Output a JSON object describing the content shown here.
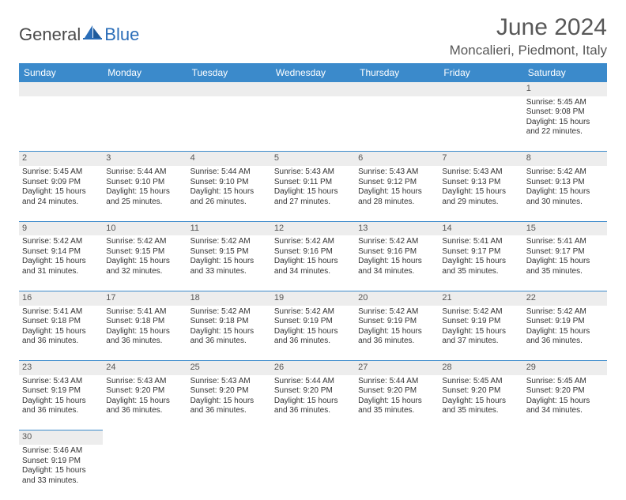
{
  "brand": {
    "part1": "General",
    "part2": "Blue"
  },
  "title": "June 2024",
  "location": "Moncalieri, Piedmont, Italy",
  "colors": {
    "header_bg": "#3b8acb",
    "header_text": "#ffffff",
    "daynum_bg": "#ededed",
    "row_border": "#3b8acb",
    "text": "#333333",
    "logo_gray": "#4a4a4a",
    "logo_blue": "#2a6db8"
  },
  "day_labels": [
    "Sunday",
    "Monday",
    "Tuesday",
    "Wednesday",
    "Thursday",
    "Friday",
    "Saturday"
  ],
  "weeks": [
    [
      null,
      null,
      null,
      null,
      null,
      null,
      {
        "n": "1",
        "sr": "Sunrise: 5:45 AM",
        "ss": "Sunset: 9:08 PM",
        "dl1": "Daylight: 15 hours",
        "dl2": "and 22 minutes."
      }
    ],
    [
      {
        "n": "2",
        "sr": "Sunrise: 5:45 AM",
        "ss": "Sunset: 9:09 PM",
        "dl1": "Daylight: 15 hours",
        "dl2": "and 24 minutes."
      },
      {
        "n": "3",
        "sr": "Sunrise: 5:44 AM",
        "ss": "Sunset: 9:10 PM",
        "dl1": "Daylight: 15 hours",
        "dl2": "and 25 minutes."
      },
      {
        "n": "4",
        "sr": "Sunrise: 5:44 AM",
        "ss": "Sunset: 9:10 PM",
        "dl1": "Daylight: 15 hours",
        "dl2": "and 26 minutes."
      },
      {
        "n": "5",
        "sr": "Sunrise: 5:43 AM",
        "ss": "Sunset: 9:11 PM",
        "dl1": "Daylight: 15 hours",
        "dl2": "and 27 minutes."
      },
      {
        "n": "6",
        "sr": "Sunrise: 5:43 AM",
        "ss": "Sunset: 9:12 PM",
        "dl1": "Daylight: 15 hours",
        "dl2": "and 28 minutes."
      },
      {
        "n": "7",
        "sr": "Sunrise: 5:43 AM",
        "ss": "Sunset: 9:13 PM",
        "dl1": "Daylight: 15 hours",
        "dl2": "and 29 minutes."
      },
      {
        "n": "8",
        "sr": "Sunrise: 5:42 AM",
        "ss": "Sunset: 9:13 PM",
        "dl1": "Daylight: 15 hours",
        "dl2": "and 30 minutes."
      }
    ],
    [
      {
        "n": "9",
        "sr": "Sunrise: 5:42 AM",
        "ss": "Sunset: 9:14 PM",
        "dl1": "Daylight: 15 hours",
        "dl2": "and 31 minutes."
      },
      {
        "n": "10",
        "sr": "Sunrise: 5:42 AM",
        "ss": "Sunset: 9:15 PM",
        "dl1": "Daylight: 15 hours",
        "dl2": "and 32 minutes."
      },
      {
        "n": "11",
        "sr": "Sunrise: 5:42 AM",
        "ss": "Sunset: 9:15 PM",
        "dl1": "Daylight: 15 hours",
        "dl2": "and 33 minutes."
      },
      {
        "n": "12",
        "sr": "Sunrise: 5:42 AM",
        "ss": "Sunset: 9:16 PM",
        "dl1": "Daylight: 15 hours",
        "dl2": "and 34 minutes."
      },
      {
        "n": "13",
        "sr": "Sunrise: 5:42 AM",
        "ss": "Sunset: 9:16 PM",
        "dl1": "Daylight: 15 hours",
        "dl2": "and 34 minutes."
      },
      {
        "n": "14",
        "sr": "Sunrise: 5:41 AM",
        "ss": "Sunset: 9:17 PM",
        "dl1": "Daylight: 15 hours",
        "dl2": "and 35 minutes."
      },
      {
        "n": "15",
        "sr": "Sunrise: 5:41 AM",
        "ss": "Sunset: 9:17 PM",
        "dl1": "Daylight: 15 hours",
        "dl2": "and 35 minutes."
      }
    ],
    [
      {
        "n": "16",
        "sr": "Sunrise: 5:41 AM",
        "ss": "Sunset: 9:18 PM",
        "dl1": "Daylight: 15 hours",
        "dl2": "and 36 minutes."
      },
      {
        "n": "17",
        "sr": "Sunrise: 5:41 AM",
        "ss": "Sunset: 9:18 PM",
        "dl1": "Daylight: 15 hours",
        "dl2": "and 36 minutes."
      },
      {
        "n": "18",
        "sr": "Sunrise: 5:42 AM",
        "ss": "Sunset: 9:18 PM",
        "dl1": "Daylight: 15 hours",
        "dl2": "and 36 minutes."
      },
      {
        "n": "19",
        "sr": "Sunrise: 5:42 AM",
        "ss": "Sunset: 9:19 PM",
        "dl1": "Daylight: 15 hours",
        "dl2": "and 36 minutes."
      },
      {
        "n": "20",
        "sr": "Sunrise: 5:42 AM",
        "ss": "Sunset: 9:19 PM",
        "dl1": "Daylight: 15 hours",
        "dl2": "and 36 minutes."
      },
      {
        "n": "21",
        "sr": "Sunrise: 5:42 AM",
        "ss": "Sunset: 9:19 PM",
        "dl1": "Daylight: 15 hours",
        "dl2": "and 37 minutes."
      },
      {
        "n": "22",
        "sr": "Sunrise: 5:42 AM",
        "ss": "Sunset: 9:19 PM",
        "dl1": "Daylight: 15 hours",
        "dl2": "and 36 minutes."
      }
    ],
    [
      {
        "n": "23",
        "sr": "Sunrise: 5:43 AM",
        "ss": "Sunset: 9:19 PM",
        "dl1": "Daylight: 15 hours",
        "dl2": "and 36 minutes."
      },
      {
        "n": "24",
        "sr": "Sunrise: 5:43 AM",
        "ss": "Sunset: 9:20 PM",
        "dl1": "Daylight: 15 hours",
        "dl2": "and 36 minutes."
      },
      {
        "n": "25",
        "sr": "Sunrise: 5:43 AM",
        "ss": "Sunset: 9:20 PM",
        "dl1": "Daylight: 15 hours",
        "dl2": "and 36 minutes."
      },
      {
        "n": "26",
        "sr": "Sunrise: 5:44 AM",
        "ss": "Sunset: 9:20 PM",
        "dl1": "Daylight: 15 hours",
        "dl2": "and 36 minutes."
      },
      {
        "n": "27",
        "sr": "Sunrise: 5:44 AM",
        "ss": "Sunset: 9:20 PM",
        "dl1": "Daylight: 15 hours",
        "dl2": "and 35 minutes."
      },
      {
        "n": "28",
        "sr": "Sunrise: 5:45 AM",
        "ss": "Sunset: 9:20 PM",
        "dl1": "Daylight: 15 hours",
        "dl2": "and 35 minutes."
      },
      {
        "n": "29",
        "sr": "Sunrise: 5:45 AM",
        "ss": "Sunset: 9:20 PM",
        "dl1": "Daylight: 15 hours",
        "dl2": "and 34 minutes."
      }
    ],
    [
      {
        "n": "30",
        "sr": "Sunrise: 5:46 AM",
        "ss": "Sunset: 9:19 PM",
        "dl1": "Daylight: 15 hours",
        "dl2": "and 33 minutes."
      },
      null,
      null,
      null,
      null,
      null,
      null
    ]
  ]
}
